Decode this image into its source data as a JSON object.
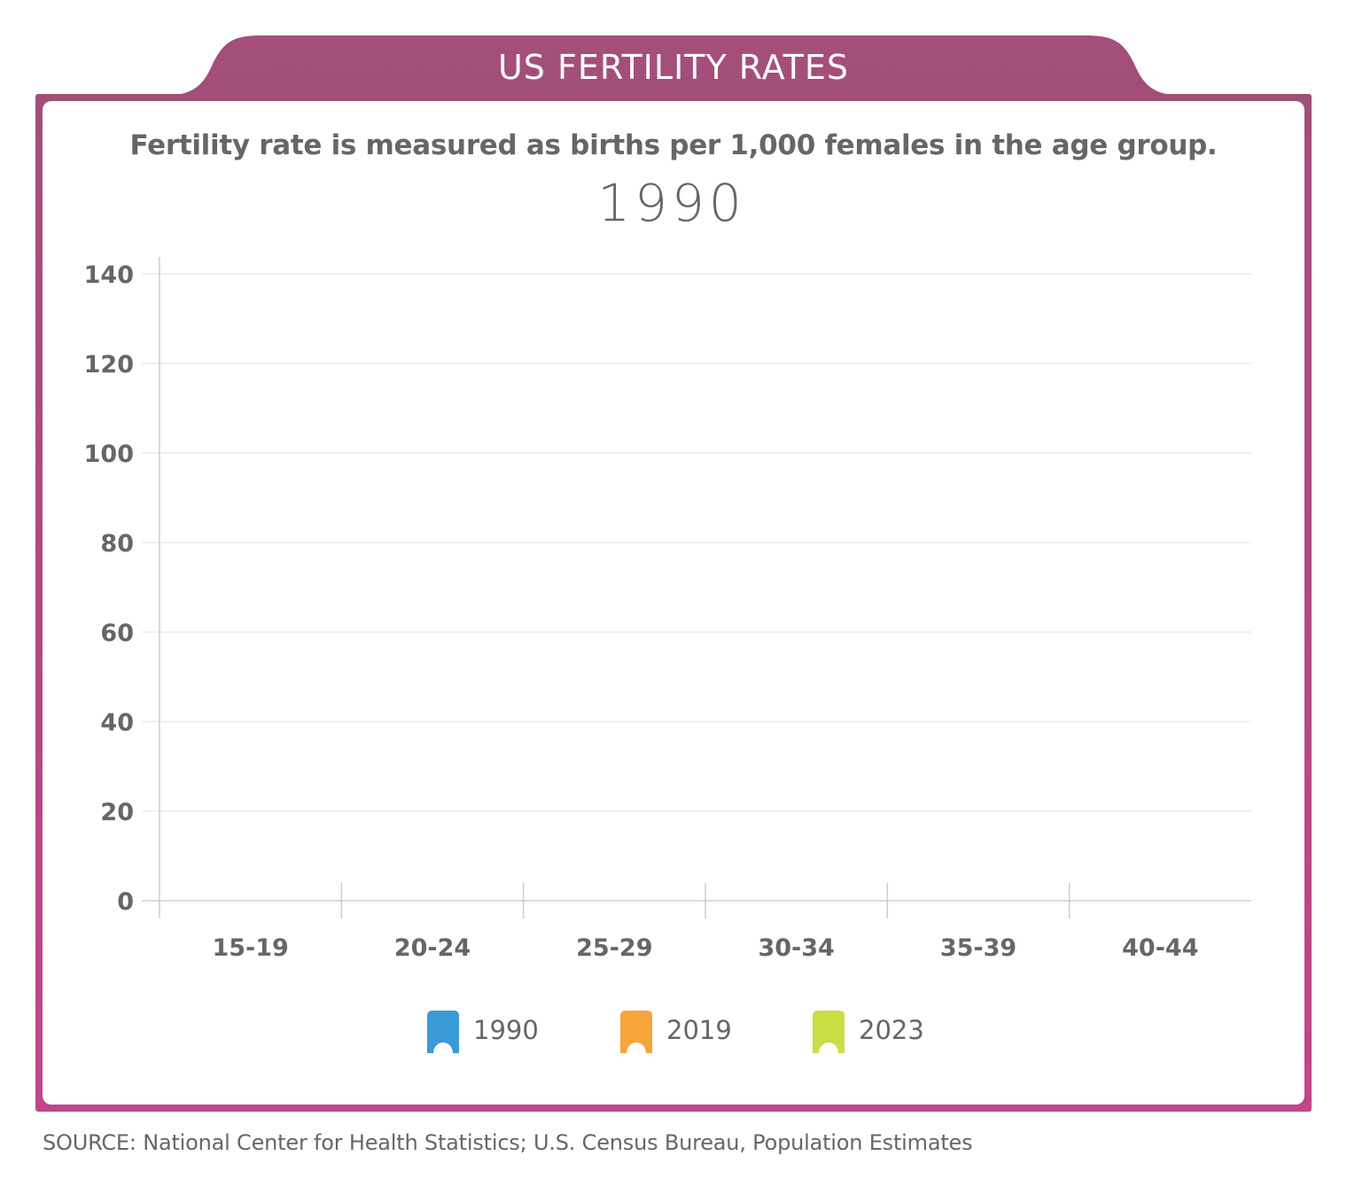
{
  "header": {
    "title": "US FERTILITY RATES"
  },
  "subtitle": "Fertility rate is measured as births per 1,000 females in the age group.",
  "current_year": "1990",
  "colors": {
    "frame_top": "#a24e7a",
    "frame_bottom": "#c0468a",
    "text": "#666666",
    "grid": "#e8e8e8",
    "axis": "#cccccc"
  },
  "legend": [
    {
      "label": "1990",
      "color": "#3a9ad6",
      "icon": "bookmark-arch-icon"
    },
    {
      "label": "2019",
      "color": "#f7a43a",
      "icon": "bookmark-arch-icon"
    },
    {
      "label": "2023",
      "color": "#c9dd45",
      "icon": "bookmark-arch-icon"
    }
  ],
  "source": "SOURCE:  National Center for Health Statistics; U.S. Census Bureau, Population Estimates",
  "chart_data": {
    "type": "bar",
    "title": "US FERTILITY RATES",
    "subtitle": "Fertility rate is measured as births per 1,000 females in the age group.",
    "annotation": "1990",
    "xlabel": "",
    "ylabel": "",
    "categories": [
      "15-19",
      "20-24",
      "25-29",
      "30-34",
      "35-39",
      "40-44"
    ],
    "yticks": [
      0,
      20,
      40,
      60,
      80,
      100,
      120,
      140
    ],
    "ylim": [
      0,
      140
    ],
    "grid": true,
    "legend_position": "bottom-center",
    "series": [
      {
        "name": "1990",
        "color": "#3a9ad6",
        "values": [
          null,
          null,
          null,
          null,
          null,
          null
        ]
      },
      {
        "name": "2019",
        "color": "#f7a43a",
        "values": [
          null,
          null,
          null,
          null,
          null,
          null
        ]
      },
      {
        "name": "2023",
        "color": "#c9dd45",
        "values": [
          null,
          null,
          null,
          null,
          null,
          null
        ]
      }
    ]
  }
}
